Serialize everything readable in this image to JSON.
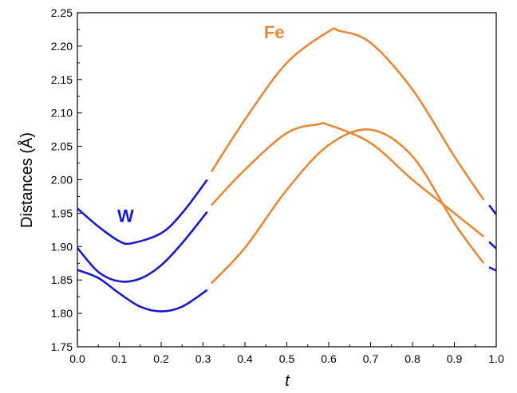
{
  "chart_data": {
    "type": "line",
    "xlabel": "t",
    "ylabel": "Distances (Å)",
    "xlim": [
      0.0,
      1.0
    ],
    "ylim": [
      1.75,
      2.25
    ],
    "x_ticks": [
      "0.0",
      "0.1",
      "0.2",
      "0.3",
      "0.4",
      "0.5",
      "0.6",
      "0.7",
      "0.8",
      "0.9",
      "1.0"
    ],
    "y_ticks": [
      "1.75",
      "1.80",
      "1.85",
      "1.90",
      "1.95",
      "2.00",
      "2.05",
      "2.10",
      "2.15",
      "2.20",
      "2.25"
    ],
    "grid": false,
    "annotations": [
      {
        "text": "W",
        "color": "#1a1acc"
      },
      {
        "text": "Fe",
        "color": "#e8893a"
      }
    ],
    "colors": {
      "W": "#1a1acc",
      "Fe": "#e8893a"
    },
    "series": [
      {
        "group": "W",
        "x": [
          0.0,
          0.05,
          0.1,
          0.13,
          0.2,
          0.25,
          0.31
        ],
        "y": [
          1.957,
          1.93,
          1.908,
          1.905,
          1.92,
          1.95,
          2.0
        ]
      },
      {
        "group": "W",
        "x": [
          0.0,
          0.05,
          0.1,
          0.15,
          0.2,
          0.25,
          0.31
        ],
        "y": [
          1.898,
          1.862,
          1.848,
          1.852,
          1.872,
          1.905,
          1.952
        ]
      },
      {
        "group": "W",
        "x": [
          0.0,
          0.05,
          0.1,
          0.15,
          0.2,
          0.25,
          0.31
        ],
        "y": [
          1.865,
          1.853,
          1.83,
          1.81,
          1.803,
          1.81,
          1.835
        ]
      },
      {
        "group": "Fe",
        "x": [
          0.32,
          0.4,
          0.5,
          0.6,
          0.625,
          0.7,
          0.8,
          0.9,
          0.97
        ],
        "y": [
          2.012,
          2.09,
          2.175,
          2.222,
          2.223,
          2.205,
          2.135,
          2.035,
          1.97
        ]
      },
      {
        "group": "Fe",
        "x": [
          0.32,
          0.4,
          0.5,
          0.575,
          0.6,
          0.7,
          0.8,
          0.9,
          0.97
        ],
        "y": [
          1.962,
          2.015,
          2.07,
          2.083,
          2.082,
          2.055,
          2.0,
          1.95,
          1.915
        ]
      },
      {
        "group": "Fe",
        "x": [
          0.32,
          0.4,
          0.5,
          0.6,
          0.7,
          0.8,
          0.9,
          0.97
        ],
        "y": [
          1.845,
          1.898,
          1.985,
          2.052,
          2.075,
          2.035,
          1.935,
          1.875
        ]
      },
      {
        "group": "W",
        "x": [
          0.983,
          1.0
        ],
        "y": [
          1.962,
          1.948
        ]
      },
      {
        "group": "W",
        "x": [
          0.983,
          1.0
        ],
        "y": [
          1.907,
          1.897
        ]
      },
      {
        "group": "W",
        "x": [
          0.983,
          1.0
        ],
        "y": [
          1.869,
          1.864
        ]
      }
    ]
  }
}
